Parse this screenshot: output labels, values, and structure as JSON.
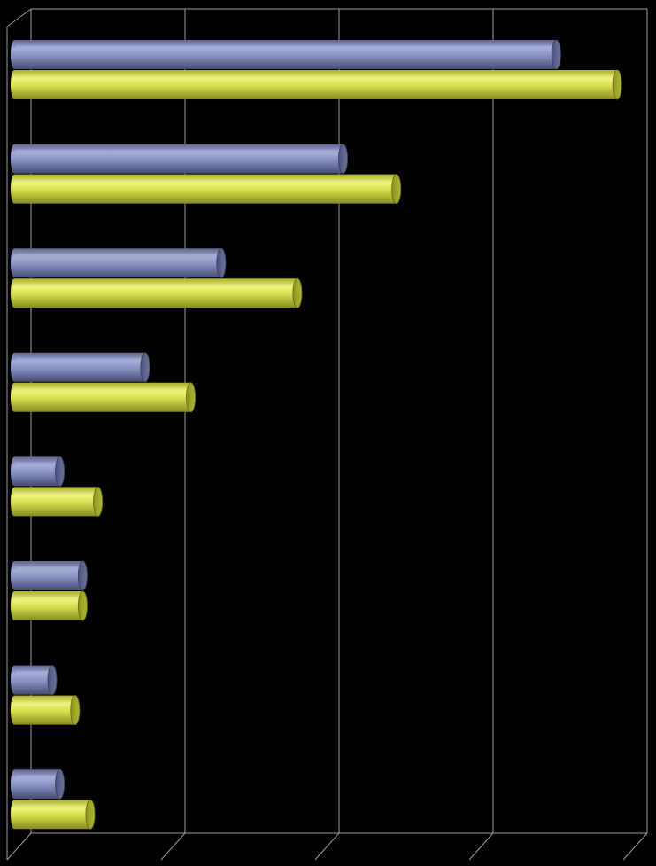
{
  "chart_data": {
    "type": "bar",
    "orientation": "horizontal",
    "style": "3d-cylinder",
    "title": "",
    "xlabel": "",
    "ylabel": "",
    "categories": [
      "",
      "",
      "",
      "",
      "",
      "",
      "",
      ""
    ],
    "xlim": [
      0,
      4
    ],
    "grid": true,
    "legend": "none",
    "series": [
      {
        "color": "#7e86b8",
        "values": [
          3.56,
          2.16,
          1.36,
          0.86,
          0.3,
          0.45,
          0.25,
          0.3
        ]
      },
      {
        "color": "#cfd94a",
        "values": [
          3.96,
          2.51,
          1.86,
          1.16,
          0.55,
          0.45,
          0.4,
          0.5
        ]
      }
    ]
  }
}
